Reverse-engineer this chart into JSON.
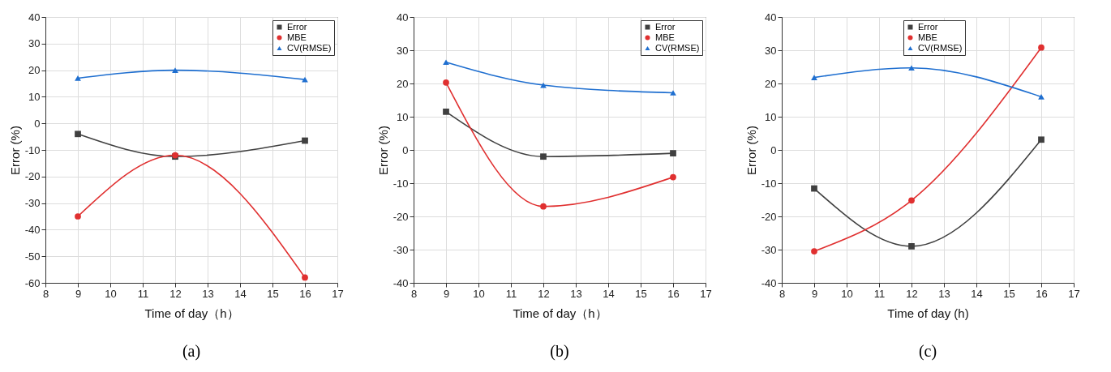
{
  "chart_data": [
    {
      "type": "line",
      "title": "(a)",
      "xlabel": "Time of day（h）",
      "ylabel": "Error (%)",
      "xlim": [
        8,
        17
      ],
      "xticks": [
        8,
        9,
        10,
        11,
        12,
        13,
        14,
        15,
        16,
        17
      ],
      "ylim": [
        -60,
        40
      ],
      "yticks": [
        -60,
        -50,
        -40,
        -30,
        -20,
        -10,
        0,
        10,
        20,
        30,
        40
      ],
      "grid": true,
      "legend": "top right",
      "x": [
        9,
        12,
        16
      ],
      "series": [
        {
          "name": "Error",
          "color": "#404040",
          "marker": "square",
          "values": [
            -4,
            -12.5,
            -6.5
          ]
        },
        {
          "name": "MBE",
          "color": "#e03030",
          "marker": "circle",
          "values": [
            -35,
            -12,
            -58
          ]
        },
        {
          "name": "CV(RMSE)",
          "color": "#1f6fd0",
          "marker": "triangle",
          "values": [
            17,
            20,
            16.5
          ]
        }
      ]
    },
    {
      "type": "line",
      "title": "(b)",
      "xlabel": "Time of day（h）",
      "ylabel": "Error (%)",
      "xlim": [
        8,
        17
      ],
      "xticks": [
        8,
        9,
        10,
        11,
        12,
        13,
        14,
        15,
        16,
        17
      ],
      "ylim": [
        -40,
        40
      ],
      "yticks": [
        -40,
        -30,
        -20,
        -10,
        0,
        10,
        20,
        30,
        40
      ],
      "grid": true,
      "legend": "top right",
      "x": [
        9,
        12,
        16
      ],
      "series": [
        {
          "name": "Error",
          "color": "#404040",
          "marker": "square",
          "values": [
            11.5,
            -2,
            -1
          ]
        },
        {
          "name": "MBE",
          "color": "#e03030",
          "marker": "circle",
          "values": [
            20.3,
            -17,
            -8.2
          ]
        },
        {
          "name": "CV(RMSE)",
          "color": "#1f6fd0",
          "marker": "triangle",
          "values": [
            26.4,
            19.5,
            17.2
          ]
        }
      ]
    },
    {
      "type": "line",
      "title": "(c)",
      "xlabel": "Time of day (h)",
      "ylabel": "Error (%)",
      "xlim": [
        8,
        17
      ],
      "xticks": [
        8,
        9,
        10,
        11,
        12,
        13,
        14,
        15,
        16,
        17
      ],
      "ylim": [
        -40,
        40
      ],
      "yticks": [
        -40,
        -30,
        -20,
        -10,
        0,
        10,
        20,
        30,
        40
      ],
      "grid": true,
      "legend": "top",
      "x": [
        9,
        12,
        16
      ],
      "series": [
        {
          "name": "Error",
          "color": "#404040",
          "marker": "square",
          "values": [
            -11.6,
            -29,
            3.1
          ]
        },
        {
          "name": "MBE",
          "color": "#e03030",
          "marker": "circle",
          "values": [
            -30.5,
            -15.2,
            30.8
          ]
        },
        {
          "name": "CV(RMSE)",
          "color": "#1f6fd0",
          "marker": "triangle",
          "values": [
            21.8,
            24.7,
            16
          ]
        }
      ]
    }
  ]
}
